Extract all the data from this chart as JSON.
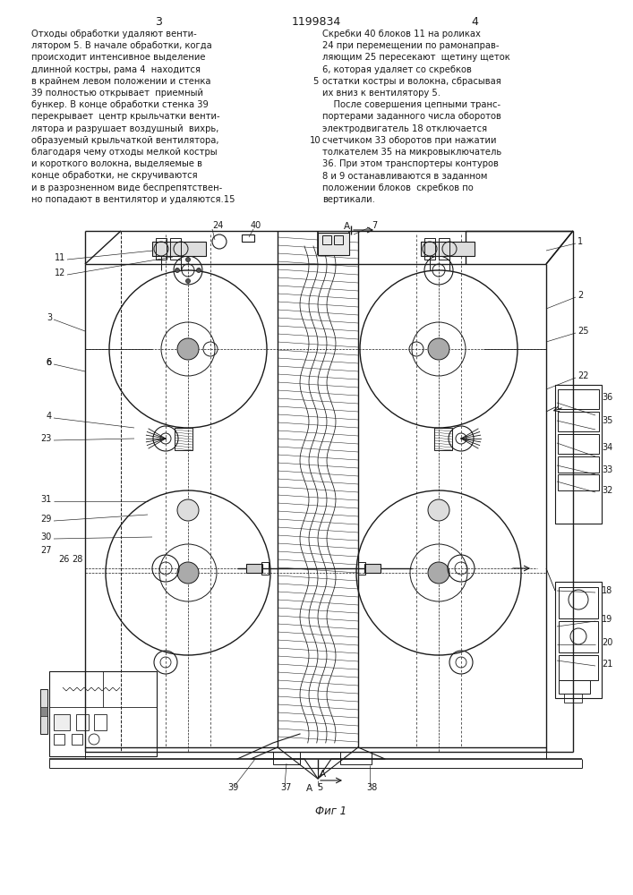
{
  "patent_number": "1199834",
  "page_left": "3",
  "page_right": "4",
  "text_left": [
    "Отходы обработки удаляют венти-",
    "лятором 5. В начале обработки, когда",
    "происходит интенсивное выделение",
    "длинной костры, рама 4  находится",
    "в крайнем левом положении и стенка",
    "39 полностью открывает  приемный",
    "бункер. В конце обработки стенка 39",
    "перекрывает  центр крыльчатки венти-",
    "лятора и разрушает воздушный  вихрь,",
    "образуемый крыльчаткой вентилятора,",
    "благодаря чему отходы мелкой костры",
    "и короткого волокна, выделяемые в",
    "конце обработки, не скручиваются",
    "и в разрозненном виде беспрепятствен-",
    "но попадают в вентилятор и удаляются.15"
  ],
  "text_right": [
    "Скребки 40 блоков 11 на роликах",
    "24 при перемещении по рамонаправ-",
    "ляющим 25 пересекают  щетину щеток",
    "6, которая удаляет со скребков",
    "остатки костры и волокна, сбрасывая",
    "их вниз к вентилятору 5.",
    "    После совершения цепными транс-",
    "портерами заданного числа оборотов",
    "электродвигатель 18 отключается",
    "счетчиком 33 оборотов при нажатии",
    "толкателем 35 на микровыключатель",
    "36. При этом транспортеры контуров",
    "8 и 9 останавливаются в заданном",
    "положении блоков  скребков по",
    "вертикали."
  ],
  "fig_caption": "Фиг 1",
  "bg_color": "#ffffff",
  "text_color": "#1a1a1a",
  "line_color": "#1a1a1a"
}
